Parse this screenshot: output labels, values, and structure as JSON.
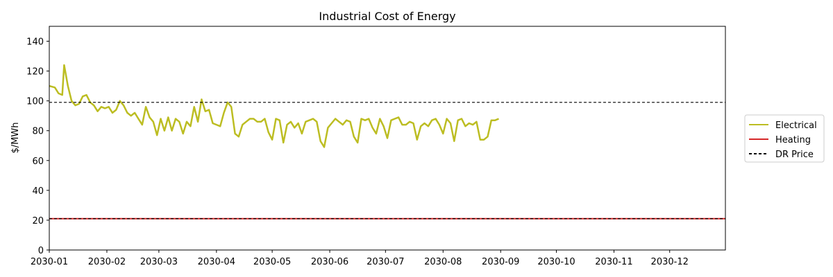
{
  "chart_data": {
    "type": "line",
    "title": "Industrial Cost of Energy",
    "xlabel": "",
    "ylabel": "$/MWh",
    "xlim": [
      "2030-01-01",
      "2030-12-31"
    ],
    "ylim": [
      0,
      150
    ],
    "x_tick_labels": [
      "2030-01",
      "2030-02",
      "2030-03",
      "2030-04",
      "2030-05",
      "2030-06",
      "2030-07",
      "2030-08",
      "2030-09",
      "2030-10",
      "2030-11",
      "2030-12"
    ],
    "x_tick_dates": [
      "2030-01-01",
      "2030-02-01",
      "2030-03-01",
      "2030-04-01",
      "2030-05-01",
      "2030-06-01",
      "2030-07-01",
      "2030-08-01",
      "2030-09-01",
      "2030-10-01",
      "2030-11-01",
      "2030-12-01"
    ],
    "y_ticks": [
      0,
      20,
      40,
      60,
      80,
      100,
      120,
      140
    ],
    "grid": false,
    "legend_position": "outside-right",
    "series": [
      {
        "name": "Electrical",
        "color": "#bcbd22",
        "style": "solid",
        "points": [
          [
            "2030-01-01",
            110
          ],
          [
            "2030-01-04",
            109
          ],
          [
            "2030-01-06",
            105
          ],
          [
            "2030-01-08",
            104
          ],
          [
            "2030-01-09",
            124
          ],
          [
            "2030-01-11",
            110
          ],
          [
            "2030-01-13",
            100
          ],
          [
            "2030-01-15",
            97
          ],
          [
            "2030-01-17",
            98
          ],
          [
            "2030-01-19",
            103
          ],
          [
            "2030-01-21",
            104
          ],
          [
            "2030-01-23",
            99
          ],
          [
            "2030-01-25",
            97
          ],
          [
            "2030-01-27",
            93
          ],
          [
            "2030-01-29",
            96
          ],
          [
            "2030-01-31",
            95
          ],
          [
            "2030-02-02",
            96
          ],
          [
            "2030-02-04",
            92
          ],
          [
            "2030-02-06",
            94
          ],
          [
            "2030-02-08",
            100
          ],
          [
            "2030-02-10",
            97
          ],
          [
            "2030-02-12",
            92
          ],
          [
            "2030-02-14",
            90
          ],
          [
            "2030-02-16",
            92
          ],
          [
            "2030-02-18",
            88
          ],
          [
            "2030-02-20",
            84
          ],
          [
            "2030-02-22",
            96
          ],
          [
            "2030-02-24",
            89
          ],
          [
            "2030-02-26",
            86
          ],
          [
            "2030-02-28",
            77
          ],
          [
            "2030-03-02",
            88
          ],
          [
            "2030-03-04",
            80
          ],
          [
            "2030-03-06",
            89
          ],
          [
            "2030-03-08",
            80
          ],
          [
            "2030-03-10",
            88
          ],
          [
            "2030-03-12",
            86
          ],
          [
            "2030-03-14",
            78
          ],
          [
            "2030-03-16",
            86
          ],
          [
            "2030-03-18",
            83
          ],
          [
            "2030-03-20",
            96
          ],
          [
            "2030-03-22",
            86
          ],
          [
            "2030-03-24",
            101
          ],
          [
            "2030-03-26",
            93
          ],
          [
            "2030-03-28",
            94
          ],
          [
            "2030-03-30",
            85
          ],
          [
            "2030-04-01",
            84
          ],
          [
            "2030-04-03",
            83
          ],
          [
            "2030-04-05",
            92
          ],
          [
            "2030-04-07",
            99
          ],
          [
            "2030-04-09",
            96
          ],
          [
            "2030-04-11",
            78
          ],
          [
            "2030-04-13",
            76
          ],
          [
            "2030-04-15",
            84
          ],
          [
            "2030-04-17",
            86
          ],
          [
            "2030-04-19",
            88
          ],
          [
            "2030-04-21",
            88
          ],
          [
            "2030-04-23",
            86
          ],
          [
            "2030-04-25",
            86
          ],
          [
            "2030-04-27",
            88
          ],
          [
            "2030-04-29",
            79
          ],
          [
            "2030-05-01",
            74
          ],
          [
            "2030-05-03",
            88
          ],
          [
            "2030-05-05",
            87
          ],
          [
            "2030-05-07",
            72
          ],
          [
            "2030-05-09",
            84
          ],
          [
            "2030-05-11",
            86
          ],
          [
            "2030-05-13",
            82
          ],
          [
            "2030-05-15",
            85
          ],
          [
            "2030-05-17",
            78
          ],
          [
            "2030-05-19",
            86
          ],
          [
            "2030-05-21",
            87
          ],
          [
            "2030-05-23",
            88
          ],
          [
            "2030-05-25",
            86
          ],
          [
            "2030-05-27",
            73
          ],
          [
            "2030-05-29",
            69
          ],
          [
            "2030-05-31",
            82
          ],
          [
            "2030-06-02",
            85
          ],
          [
            "2030-06-04",
            88
          ],
          [
            "2030-06-06",
            86
          ],
          [
            "2030-06-08",
            84
          ],
          [
            "2030-06-10",
            87
          ],
          [
            "2030-06-12",
            86
          ],
          [
            "2030-06-14",
            76
          ],
          [
            "2030-06-16",
            72
          ],
          [
            "2030-06-18",
            88
          ],
          [
            "2030-06-20",
            87
          ],
          [
            "2030-06-22",
            88
          ],
          [
            "2030-06-24",
            82
          ],
          [
            "2030-06-26",
            78
          ],
          [
            "2030-06-28",
            88
          ],
          [
            "2030-06-30",
            83
          ],
          [
            "2030-07-02",
            75
          ],
          [
            "2030-07-04",
            87
          ],
          [
            "2030-07-06",
            88
          ],
          [
            "2030-07-08",
            89
          ],
          [
            "2030-07-10",
            84
          ],
          [
            "2030-07-12",
            84
          ],
          [
            "2030-07-14",
            86
          ],
          [
            "2030-07-16",
            85
          ],
          [
            "2030-07-18",
            74
          ],
          [
            "2030-07-20",
            83
          ],
          [
            "2030-07-22",
            85
          ],
          [
            "2030-07-24",
            83
          ],
          [
            "2030-07-26",
            87
          ],
          [
            "2030-07-28",
            88
          ],
          [
            "2030-07-30",
            84
          ],
          [
            "2030-08-01",
            78
          ],
          [
            "2030-08-03",
            88
          ],
          [
            "2030-08-05",
            85
          ],
          [
            "2030-08-07",
            73
          ],
          [
            "2030-08-09",
            87
          ],
          [
            "2030-08-11",
            88
          ],
          [
            "2030-08-13",
            83
          ],
          [
            "2030-08-15",
            85
          ],
          [
            "2030-08-17",
            84
          ],
          [
            "2030-08-19",
            86
          ],
          [
            "2030-08-21",
            74
          ],
          [
            "2030-08-23",
            74
          ],
          [
            "2030-08-25",
            76
          ],
          [
            "2030-08-27",
            87
          ],
          [
            "2030-08-29",
            87
          ],
          [
            "2030-08-31",
            88
          ]
        ]
      },
      {
        "name": "Heating",
        "color": "#d62728",
        "style": "solid",
        "points": [
          [
            "2030-01-01",
            21
          ],
          [
            "2030-12-31",
            21
          ]
        ]
      },
      {
        "name": "DR Price",
        "color": "#000000",
        "style": "dashed",
        "levels": [
          99,
          21
        ]
      }
    ]
  }
}
